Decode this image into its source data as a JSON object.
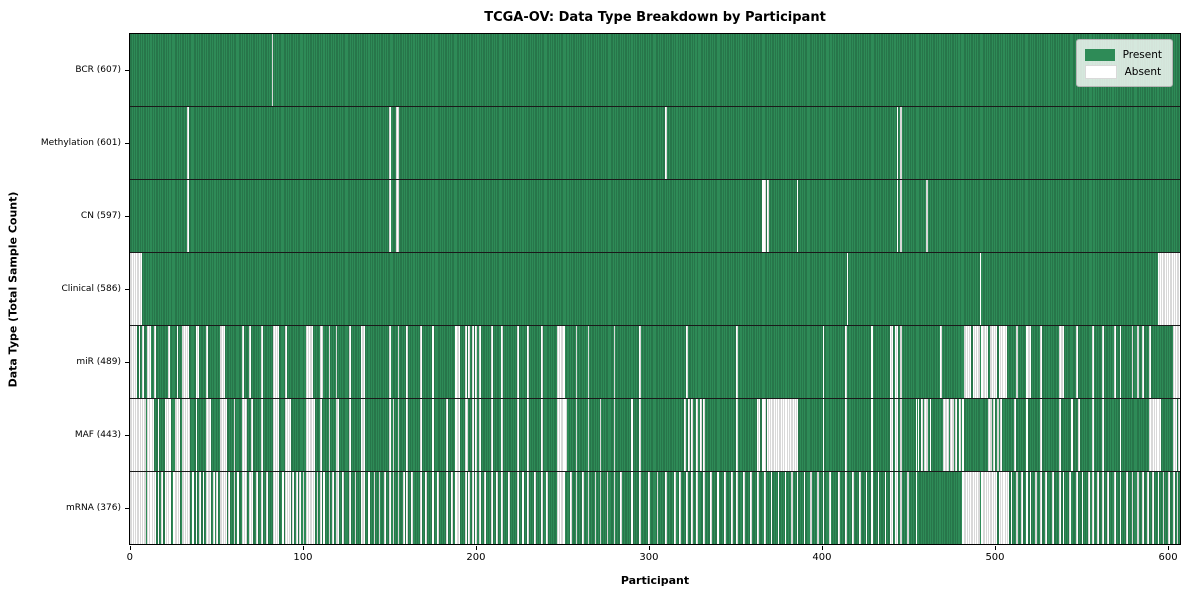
{
  "title": "TCGA-OV: Data Type Breakdown by Participant",
  "x_axis": {
    "label": "Participant",
    "ticks": [
      0,
      100,
      200,
      300,
      400,
      500,
      600
    ]
  },
  "y_axis": {
    "label": "Data Type (Total Sample Count)"
  },
  "legend": {
    "present_label": "Present",
    "absent_label": "Absent"
  },
  "colors": {
    "present": "#2e8b57",
    "absent": "#ffffff",
    "grid_edge": "rgba(0,0,0,0.30)",
    "row_separator": "#1a1a1a",
    "legend_border": "#b5b5b5"
  },
  "chart_data": {
    "type": "heatmap",
    "title": "TCGA-OV: Data Type Breakdown by Participant",
    "xlabel": "Participant",
    "ylabel": "Data Type (Total Sample Count)",
    "xlim": [
      0,
      608
    ],
    "n_participants": 608,
    "legend_position": "upper right",
    "rows": [
      {
        "data_type": "BCR",
        "label": "BCR (607)",
        "present_count": 607,
        "absent_indices": [
          82
        ]
      },
      {
        "data_type": "Methylation",
        "label": "Methylation (601)",
        "present_count": 601,
        "absent_indices": [
          33,
          150,
          154,
          155,
          310,
          444,
          446
        ]
      },
      {
        "data_type": "CN",
        "label": "CN (597)",
        "present_count": 597,
        "absent_indices": [
          33,
          150,
          154,
          155,
          366,
          367,
          369,
          386,
          444,
          446,
          461
        ]
      },
      {
        "data_type": "Clinical",
        "label": "Clinical (586)",
        "present_count": 586,
        "absent_indices": [
          0,
          1,
          2,
          3,
          4,
          5,
          6,
          415,
          492,
          595,
          596,
          597,
          598,
          599,
          600,
          601,
          602,
          603,
          604,
          605,
          606,
          607
        ]
      },
      {
        "data_type": "miR",
        "label": "miR (489)",
        "present_count": 489,
        "absent_indices": [
          0,
          1,
          2,
          3,
          5,
          7,
          10,
          11,
          14,
          22,
          27,
          30,
          31,
          32,
          33,
          38,
          39,
          44,
          52,
          53,
          54,
          65,
          69,
          76,
          83,
          84,
          85,
          90,
          102,
          103,
          104,
          105,
          110,
          111,
          115,
          119,
          127,
          134,
          135,
          150,
          155,
          160,
          168,
          175,
          188,
          189,
          190,
          194,
          196,
          198,
          200,
          202,
          209,
          215,
          224,
          230,
          238,
          247,
          248,
          249,
          250,
          251,
          258,
          265,
          280,
          295,
          322,
          351,
          401,
          414,
          429,
          440,
          441,
          443,
          444,
          446,
          469,
          483,
          484,
          485,
          486,
          488,
          489,
          490,
          491,
          493,
          494,
          495,
          496,
          498,
          499,
          500,
          501,
          503,
          504,
          505,
          506,
          507,
          513,
          519,
          520,
          521,
          527,
          538,
          539,
          540,
          548,
          557,
          563,
          570,
          573,
          580,
          583,
          586,
          590,
          604,
          605,
          606,
          607
        ]
      },
      {
        "data_type": "MAF",
        "label": "MAF (443)",
        "present_count": 443,
        "absent_indices": [
          0,
          1,
          2,
          3,
          4,
          5,
          6,
          7,
          8,
          10,
          11,
          12,
          13,
          16,
          20,
          21,
          22,
          23,
          26,
          27,
          28,
          30,
          31,
          32,
          33,
          34,
          38,
          44,
          45,
          46,
          52,
          53,
          54,
          55,
          60,
          65,
          66,
          67,
          70,
          76,
          83,
          84,
          85,
          90,
          91,
          92,
          102,
          103,
          104,
          105,
          106,
          110,
          115,
          119,
          120,
          127,
          134,
          135,
          150,
          152,
          155,
          160,
          168,
          175,
          183,
          188,
          189,
          190,
          194,
          195,
          198,
          200,
          202,
          209,
          215,
          224,
          230,
          238,
          247,
          248,
          249,
          250,
          251,
          252,
          258,
          265,
          272,
          280,
          290,
          295,
          321,
          323,
          325,
          328,
          330,
          332,
          351,
          363,
          364,
          366,
          367,
          369,
          370,
          371,
          372,
          373,
          374,
          375,
          376,
          377,
          378,
          379,
          380,
          381,
          382,
          383,
          384,
          385,
          386,
          401,
          414,
          429,
          440,
          441,
          443,
          444,
          446,
          455,
          456,
          458,
          460,
          461,
          463,
          471,
          472,
          473,
          475,
          476,
          478,
          480,
          482,
          497,
          498,
          500,
          502,
          504,
          512,
          519,
          527,
          538,
          545,
          549,
          557,
          563,
          573,
          590,
          591,
          592,
          593,
          594,
          595,
          596,
          604,
          605,
          607
        ]
      },
      {
        "data_type": "mRNA",
        "label": "mRNA (376)",
        "present_count": 376,
        "absent_indices": [
          0,
          1,
          2,
          3,
          4,
          5,
          6,
          7,
          8,
          10,
          11,
          12,
          13,
          14,
          16,
          18,
          20,
          21,
          22,
          23,
          25,
          26,
          27,
          28,
          30,
          31,
          32,
          33,
          34,
          36,
          38,
          40,
          42,
          44,
          45,
          46,
          48,
          50,
          52,
          53,
          54,
          55,
          57,
          60,
          62,
          65,
          66,
          67,
          69,
          70,
          73,
          76,
          79,
          83,
          84,
          85,
          88,
          90,
          91,
          92,
          94,
          96,
          98,
          100,
          102,
          103,
          104,
          105,
          106,
          108,
          110,
          112,
          115,
          117,
          119,
          120,
          123,
          127,
          130,
          134,
          135,
          138,
          141,
          144,
          147,
          150,
          152,
          155,
          158,
          160,
          163,
          168,
          171,
          175,
          178,
          183,
          186,
          188,
          189,
          190,
          194,
          196,
          198,
          200,
          202,
          205,
          209,
          212,
          215,
          219,
          224,
          227,
          230,
          234,
          238,
          241,
          247,
          248,
          249,
          250,
          251,
          255,
          258,
          262,
          265,
          269,
          272,
          276,
          280,
          284,
          290,
          295,
          300,
          305,
          310,
          315,
          318,
          322,
          325,
          328,
          332,
          336,
          340,
          344,
          348,
          351,
          355,
          359,
          363,
          367,
          371,
          375,
          379,
          383,
          386,
          390,
          394,
          398,
          401,
          405,
          410,
          414,
          418,
          422,
          426,
          429,
          433,
          437,
          440,
          441,
          443,
          444,
          446,
          450,
          455,
          482,
          483,
          484,
          485,
          486,
          487,
          488,
          489,
          490,
          491,
          493,
          494,
          495,
          496,
          497,
          498,
          499,
          500,
          501,
          503,
          504,
          505,
          506,
          507,
          508,
          510,
          513,
          516,
          519,
          521,
          524,
          527,
          530,
          534,
          538,
          540,
          544,
          548,
          551,
          555,
          557,
          560,
          563,
          566,
          570,
          573,
          577,
          580,
          583,
          586,
          589,
          592,
          595,
          598,
          601,
          604,
          606
        ]
      }
    ]
  }
}
